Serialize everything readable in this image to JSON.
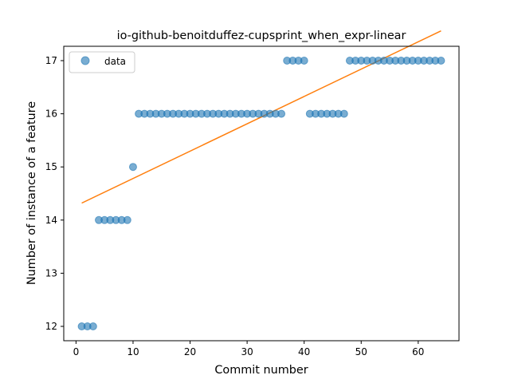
{
  "chart_data": {
    "type": "scatter",
    "title": "io-github-benoitduffez-cupsprint_when_expr-linear",
    "xlabel": "Commit number",
    "ylabel": "Number of instance of a feature",
    "xlim": [
      -2.15,
      67.15
    ],
    "ylim": [
      11.73,
      17.27
    ],
    "xticks": [
      0,
      10,
      20,
      30,
      40,
      50,
      60
    ],
    "yticks": [
      12,
      13,
      14,
      15,
      16,
      17
    ],
    "grid": false,
    "legend": {
      "position": "top-left",
      "entries": [
        "data"
      ]
    },
    "colors": {
      "points": "#1f77b4",
      "trend": "#ff7f0e"
    },
    "series": [
      {
        "name": "data",
        "kind": "scatter",
        "x": [
          1,
          2,
          3,
          4,
          5,
          6,
          7,
          8,
          9,
          10,
          11,
          12,
          13,
          14,
          15,
          16,
          17,
          18,
          19,
          20,
          21,
          22,
          23,
          24,
          25,
          26,
          27,
          28,
          29,
          30,
          31,
          32,
          33,
          34,
          35,
          36,
          37,
          38,
          39,
          40,
          41,
          42,
          43,
          44,
          45,
          46,
          47,
          48,
          49,
          50,
          51,
          52,
          53,
          54,
          55,
          56,
          57,
          58,
          59,
          60,
          61,
          62,
          63,
          64
        ],
        "y": [
          12,
          12,
          12,
          14,
          14,
          14,
          14,
          14,
          14,
          15,
          16,
          16,
          16,
          16,
          16,
          16,
          16,
          16,
          16,
          16,
          16,
          16,
          16,
          16,
          16,
          16,
          16,
          16,
          16,
          16,
          16,
          16,
          16,
          16,
          16,
          16,
          17,
          17,
          17,
          17,
          16,
          16,
          16,
          16,
          16,
          16,
          16,
          17,
          17,
          17,
          17,
          17,
          17,
          17,
          17,
          17,
          17,
          17,
          17,
          17,
          17,
          17,
          17,
          17
        ]
      },
      {
        "kind": "line",
        "x": [
          1,
          64
        ],
        "y": [
          14.32,
          17.56
        ]
      }
    ]
  }
}
